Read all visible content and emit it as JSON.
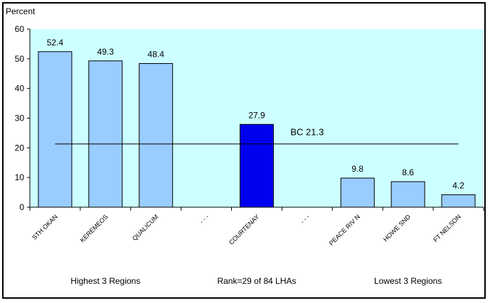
{
  "chart_data": {
    "type": "bar",
    "ylabel": "Percent",
    "ylim": [
      0,
      60
    ],
    "yticks": [
      0,
      10,
      20,
      30,
      40,
      50,
      60
    ],
    "grid": false,
    "plot_background": "#ccffff",
    "categories": [
      "STH OKAN",
      "KEREMEOS",
      "QUALICUM",
      "- - -",
      "COURTENAY",
      "- - -",
      "PEACE RIV N",
      "HOWE SND",
      "FT NELSON"
    ],
    "values": [
      52.4,
      49.3,
      48.4,
      null,
      27.9,
      null,
      9.8,
      8.6,
      4.2
    ],
    "value_labels": [
      "52.4",
      "49.3",
      "48.4",
      "",
      "27.9",
      "",
      "9.8",
      "8.6",
      "4.2"
    ],
    "bar_colors": [
      "#99ccff",
      "#99ccff",
      "#99ccff",
      null,
      "#0000ee",
      null,
      "#99ccff",
      "#99ccff",
      "#99ccff"
    ],
    "reference_line": {
      "label": "BC 21.3",
      "value": 21.3
    },
    "group_labels": [
      "Highest 3 Regions",
      "Rank=29 of 84 LHAs",
      "Lowest 3 Regions"
    ]
  }
}
